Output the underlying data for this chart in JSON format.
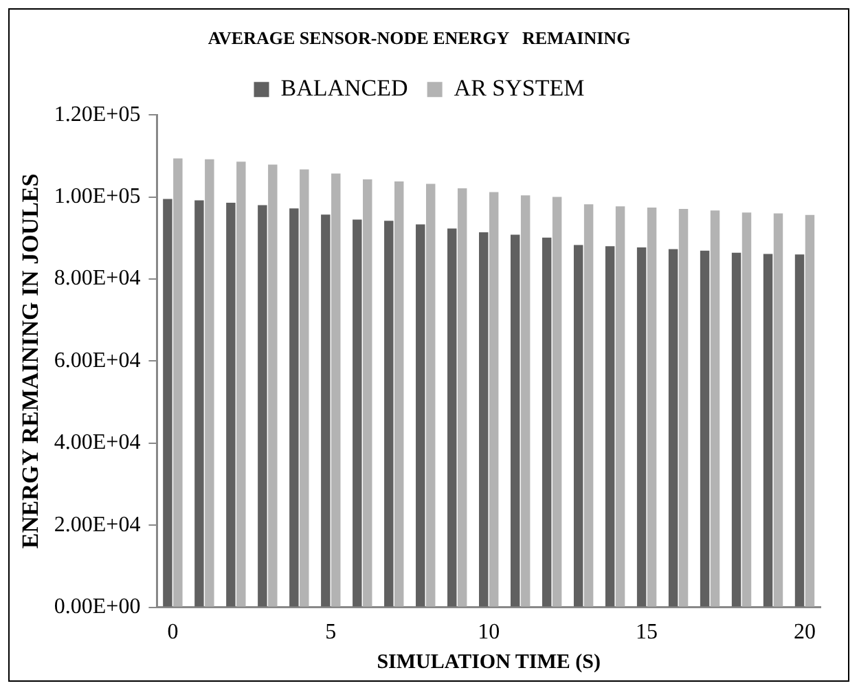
{
  "chart_data": {
    "type": "bar",
    "title": "AVERAGE SENSOR-NODE ENERGY   REMAINING",
    "xlabel": "SIMULATION TIME (S)",
    "ylabel": "ENERGY REMAINING IN JOULES",
    "categories": [
      "0",
      null,
      null,
      null,
      null,
      "5",
      null,
      null,
      null,
      null,
      "10",
      null,
      null,
      null,
      null,
      "15",
      null,
      null,
      null,
      null,
      "20"
    ],
    "series": [
      {
        "name": "BALANCED",
        "color": "#606060",
        "values": [
          99500,
          99200,
          98600,
          98000,
          97200,
          95700,
          94500,
          94200,
          93300,
          92300,
          91400,
          90800,
          90100,
          88300,
          88000,
          87700,
          87300,
          86900,
          86400,
          86100,
          86000
        ]
      },
      {
        "name": "AR SYSTEM",
        "color": "#b3b3b3",
        "values": [
          109400,
          109200,
          108600,
          107900,
          106700,
          105700,
          104300,
          103800,
          103200,
          102100,
          101200,
          100400,
          100000,
          98200,
          97700,
          97400,
          97100,
          96700,
          96200,
          96000,
          95600
        ]
      }
    ],
    "ylim": [
      0,
      120000
    ],
    "yticks": [
      {
        "value": 0,
        "label": "0.00E+00"
      },
      {
        "value": 20000,
        "label": "2.00E+04"
      },
      {
        "value": 40000,
        "label": "4.00E+04"
      },
      {
        "value": 60000,
        "label": "6.00E+04"
      },
      {
        "value": 80000,
        "label": "8.00E+04"
      },
      {
        "value": 100000,
        "label": "1.00E+05"
      },
      {
        "value": 120000,
        "label": "1.20E+05"
      }
    ],
    "grid": false,
    "legend": "top"
  }
}
